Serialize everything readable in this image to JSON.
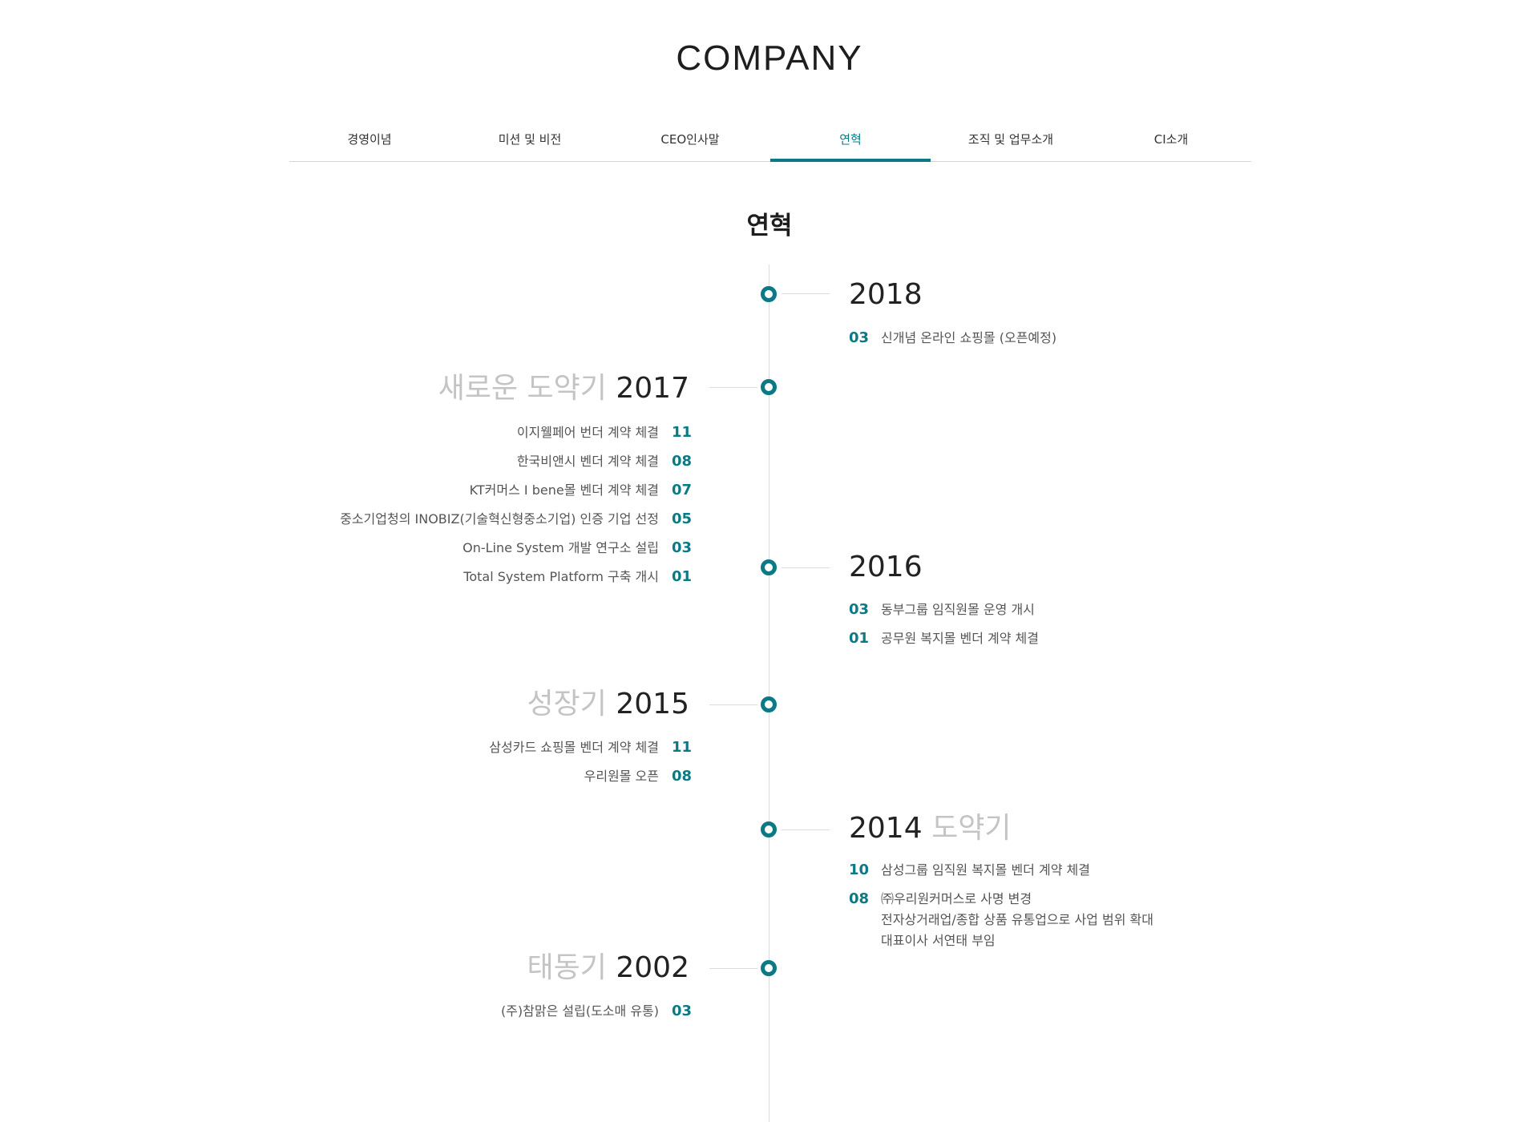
{
  "page_title": "COMPANY",
  "tabs": [
    {
      "label": "경영이념",
      "active": false
    },
    {
      "label": "미션 및 비전",
      "active": false
    },
    {
      "label": "CEO인사말",
      "active": false
    },
    {
      "label": "연혁",
      "active": true
    },
    {
      "label": "조직 및 업무소개",
      "active": false
    },
    {
      "label": "CI소개",
      "active": false
    }
  ],
  "section_title": "연혁",
  "accent_color": "#0b7a85",
  "era_color": "#c4c4c4",
  "timeline": [
    {
      "year": "2018",
      "era": "",
      "side": "right",
      "events": [
        {
          "month": "03",
          "text": "신개념 온라인 쇼핑몰 (오픈예정)"
        }
      ]
    },
    {
      "year": "2017",
      "era": "새로운 도약기",
      "side": "left",
      "events": [
        {
          "month": "11",
          "text": "이지웰페어 번더 계약 체결"
        },
        {
          "month": "08",
          "text": "한국비앤시 벤더 계약 체결"
        },
        {
          "month": "07",
          "text": "KT커머스 I bene몰 벤더 계약 체결"
        },
        {
          "month": "05",
          "text": "중소기업청의 INOBIZ(기술혁신형중소기업) 인증 기업 선정"
        },
        {
          "month": "03",
          "text": "On-Line System 개발 연구소 설립"
        },
        {
          "month": "01",
          "text": "Total System Platform 구축 개시"
        }
      ]
    },
    {
      "year": "2016",
      "era": "",
      "side": "right",
      "events": [
        {
          "month": "03",
          "text": "동부그룹 임직원몰 운영 개시"
        },
        {
          "month": "01",
          "text": "공무원 복지몰 벤더 계약 체결"
        }
      ]
    },
    {
      "year": "2015",
      "era": "성장기",
      "side": "left",
      "events": [
        {
          "month": "11",
          "text": "삼성카드 쇼핑몰 벤더 계약 체결"
        },
        {
          "month": "08",
          "text": "우리원몰 오픈"
        }
      ]
    },
    {
      "year": "2014",
      "era": "도약기",
      "side": "right",
      "events": [
        {
          "month": "10",
          "text": "삼성그룹 임직원 복지몰 벤더 계약 체결"
        },
        {
          "month": "08",
          "text": "㈜우리원커머스로 사명 변경\n전자상거래업/종합 상품 유통업으로 사업 범위 확대\n대표이사 서연태 부임"
        }
      ]
    },
    {
      "year": "2002",
      "era": "태동기",
      "side": "left",
      "events": [
        {
          "month": "03",
          "text": "(주)참맑은 설립(도소매 유통)"
        }
      ]
    }
  ]
}
